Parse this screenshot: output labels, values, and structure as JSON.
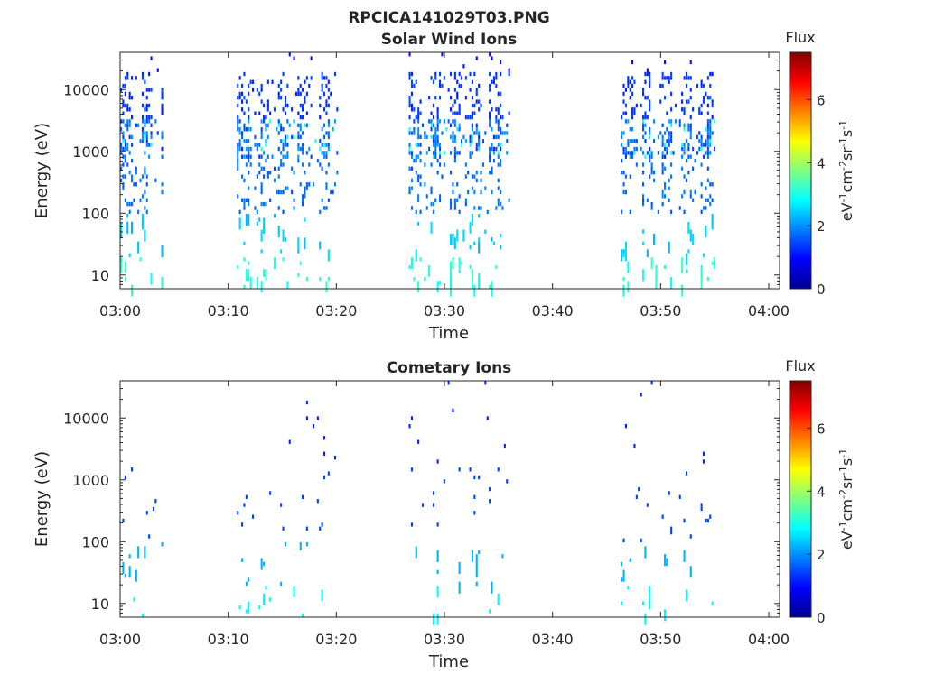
{
  "page_title": "RPCICA141029T03.PNG",
  "chart_data": [
    {
      "type": "heatmap",
      "title": "Solar Wind Ions",
      "xlabel": "Time",
      "ylabel": "Energy (eV)",
      "x_ticks": [
        "03:00",
        "03:10",
        "03:20",
        "03:30",
        "03:40",
        "03:50",
        "04:00"
      ],
      "x_range_minutes": [
        0,
        61
      ],
      "y_scale": "log",
      "y_ticks": [
        10,
        100,
        1000,
        10000
      ],
      "y_range": [
        6,
        40000
      ],
      "colorbar": {
        "title": "Flux",
        "label": "eV-1cm-2sr-1s-1",
        "ticks": [
          0,
          2,
          4,
          6
        ],
        "range": [
          0,
          7.5
        ]
      },
      "active_intervals_minutes": [
        [
          0.0,
          4.0
        ],
        [
          10.8,
          20.0
        ],
        [
          26.7,
          36.0
        ],
        [
          46.3,
          55.0
        ]
      ],
      "grid": false
    },
    {
      "type": "heatmap",
      "title": "Cometary Ions",
      "xlabel": "Time",
      "ylabel": "Energy (eV)",
      "x_ticks": [
        "03:00",
        "03:10",
        "03:20",
        "03:30",
        "03:40",
        "03:50",
        "04:00"
      ],
      "x_range_minutes": [
        0,
        61
      ],
      "y_scale": "log",
      "y_ticks": [
        10,
        100,
        1000,
        10000
      ],
      "y_range": [
        6,
        40000
      ],
      "colorbar": {
        "title": "Flux",
        "label": "eV-1cm-2sr-1s-1",
        "ticks": [
          0,
          2,
          4,
          6
        ],
        "range": [
          0,
          7.5
        ]
      },
      "active_intervals_minutes": [
        [
          0.0,
          4.0
        ],
        [
          10.8,
          20.0
        ],
        [
          26.7,
          36.0
        ],
        [
          46.3,
          55.0
        ]
      ],
      "grid": false
    }
  ]
}
